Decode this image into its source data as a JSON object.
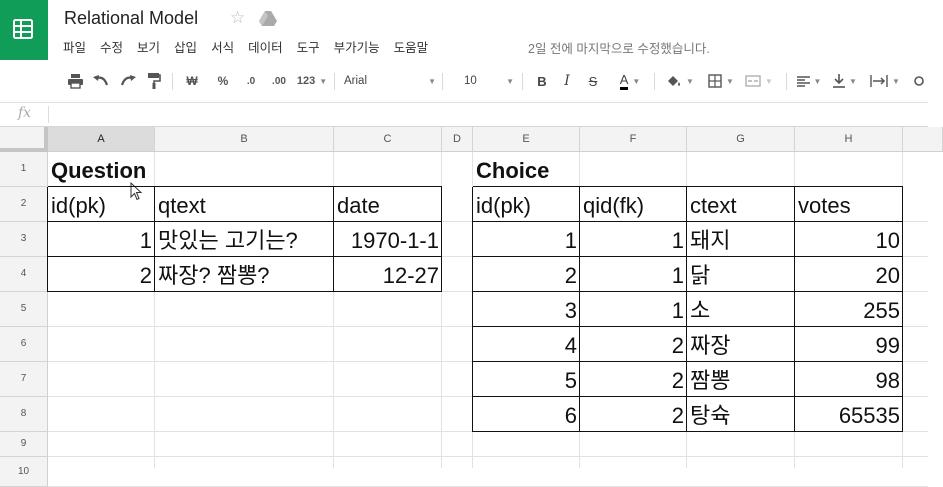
{
  "header": {
    "title": "Relational Model",
    "last_edit": "2일 전에 마지막으로 수정했습니다."
  },
  "menu": [
    "파일",
    "수정",
    "보기",
    "삽입",
    "서식",
    "데이터",
    "도구",
    "부가기능",
    "도움말"
  ],
  "toolbar": {
    "currency": "₩",
    "percent": "%",
    "dec_less": ".0",
    "dec_more": ".00",
    "number_format": "123",
    "font": "Arial",
    "font_size": "10",
    "bold": "B",
    "italic": "I",
    "strike": "S",
    "text_color": "A"
  },
  "formula_bar": {
    "label": "fx"
  },
  "columns": [
    "A",
    "B",
    "C",
    "D",
    "E",
    "F",
    "G",
    "H"
  ],
  "active_column": "A",
  "rows": [
    "1",
    "2",
    "3",
    "4",
    "5",
    "6",
    "7",
    "8",
    "9",
    "10"
  ],
  "question_table": {
    "title": "Question",
    "headers": [
      "id(pk)",
      "qtext",
      "date"
    ],
    "rows": [
      [
        "1",
        "맛있는 고기는?",
        "1970-1-1"
      ],
      [
        "2",
        "짜장? 짬뽕?",
        "12-27"
      ]
    ]
  },
  "choice_table": {
    "title": "Choice",
    "headers": [
      "id(pk)",
      "qid(fk)",
      "ctext",
      "votes"
    ],
    "rows": [
      [
        "1",
        "1",
        "돼지",
        "10"
      ],
      [
        "2",
        "1",
        "닭",
        "20"
      ],
      [
        "3",
        "1",
        "소",
        "255"
      ],
      [
        "4",
        "2",
        "짜장",
        "99"
      ],
      [
        "5",
        "2",
        "짬뽕",
        "98"
      ],
      [
        "6",
        "2",
        "탕슉",
        "65535"
      ]
    ]
  },
  "colors": {
    "brand": "#0f9d58",
    "header_bg": "#f3f3f3",
    "active_header": "#dcdcdc"
  }
}
